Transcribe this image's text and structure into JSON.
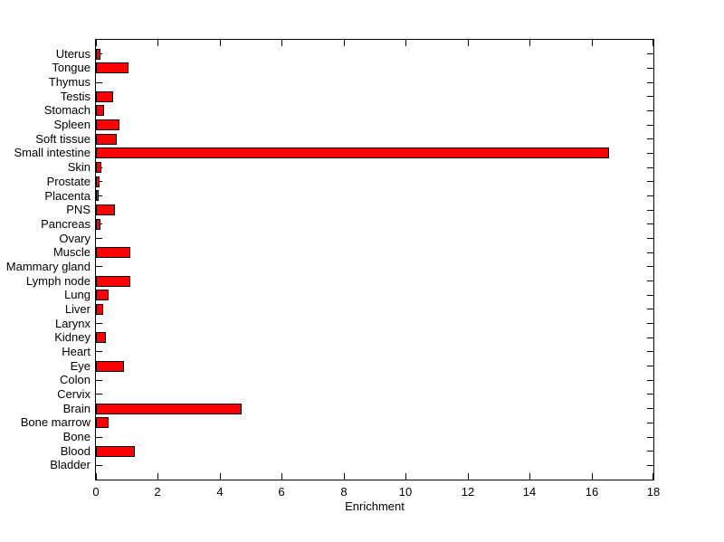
{
  "figure": {
    "background_color": "#ffffff",
    "axis_color": "#000000",
    "text_color": "#000000"
  },
  "chart_data": {
    "type": "bar",
    "orientation": "horizontal",
    "title": "",
    "xlabel": "Enrichment",
    "ylabel": "",
    "xlim": [
      0,
      18
    ],
    "xticks": [
      0,
      2,
      4,
      6,
      8,
      10,
      12,
      14,
      16,
      18
    ],
    "grid": false,
    "legend": "none",
    "bar_color": "#ff0000",
    "bar_edge_color": "#000000",
    "categories_top_to_bottom": [
      "Uterus",
      "Tongue",
      "Thymus",
      "Testis",
      "Stomach",
      "Spleen",
      "Soft tissue",
      "Small intestine",
      "Skin",
      "Prostate",
      "Placenta",
      "PNS",
      "Pancreas",
      "Ovary",
      "Muscle",
      "Mammary gland",
      "Lymph node",
      "Lung",
      "Liver",
      "Larynx",
      "Kidney",
      "Heart",
      "Eye",
      "Colon",
      "Cervix",
      "Brain",
      "Bone marrow",
      "Bone",
      "Blood",
      "Bladder"
    ],
    "values": [
      0.1,
      1.0,
      0,
      0.5,
      0.2,
      0.7,
      0.6,
      16.5,
      0.12,
      0.05,
      0.03,
      0.55,
      0.08,
      0,
      1.05,
      0,
      1.05,
      0.35,
      0.18,
      0,
      0.25,
      0,
      0.85,
      0,
      0,
      4.65,
      0.35,
      0,
      1.2,
      0
    ]
  }
}
